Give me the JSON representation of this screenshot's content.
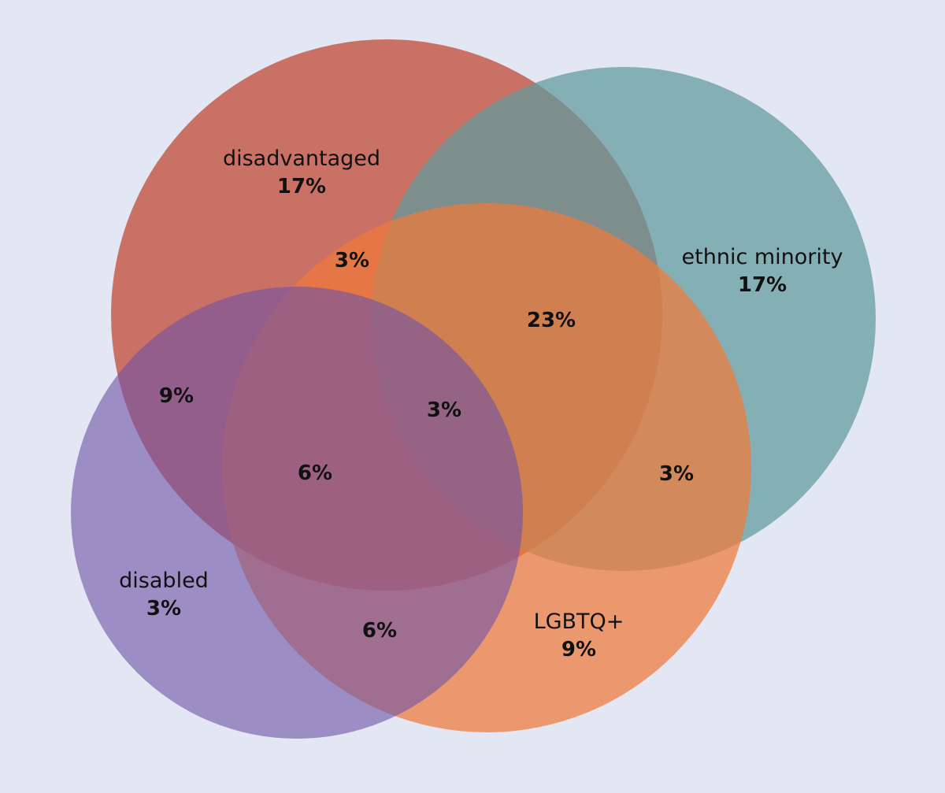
{
  "sets": {
    "disadvantaged": {
      "label": "disadvantaged",
      "value": "17%",
      "color": "#c0442e"
    },
    "ethnic_minority": {
      "label": "ethnic minority",
      "value": "17%",
      "color": "#5f9a9c"
    },
    "lgbtq": {
      "label": "LGBTQ+",
      "value": "9%",
      "color": "#f07a3a"
    },
    "disabled": {
      "label": "disabled",
      "value": "3%",
      "color": "#6e52a6"
    }
  },
  "regions": {
    "disadvantaged_lgbtq": "3%",
    "disadvantaged_ethnic_lgbtq": "23%",
    "disadvantaged_disabled": "9%",
    "all_four": "3%",
    "disadvantaged_disabled_lgbtq": "6%",
    "ethnic_lgbtq": "3%",
    "disabled_lgbtq": "6%"
  }
}
